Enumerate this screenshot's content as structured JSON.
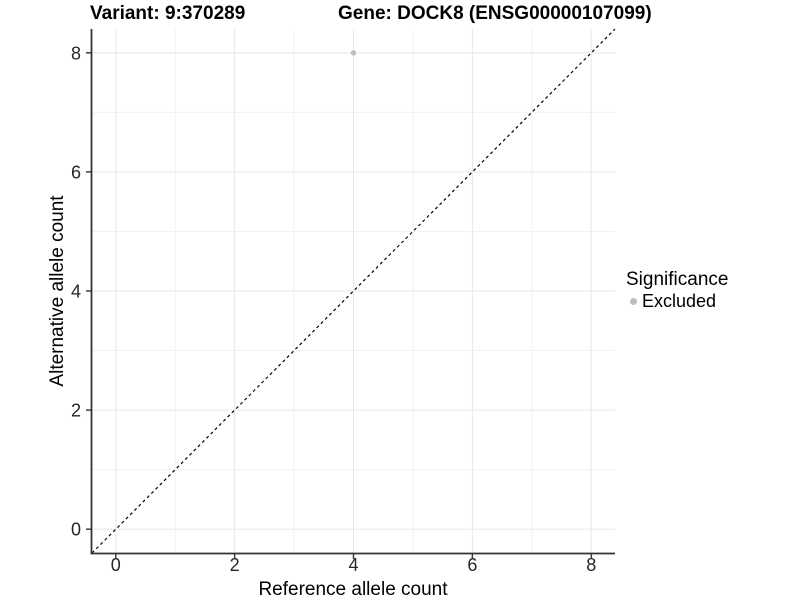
{
  "title": {
    "variant": "Variant: 9:370289",
    "gene": "Gene: DOCK8 (ENSG00000107099)"
  },
  "axes": {
    "x_label": "Reference allele count",
    "y_label": "Alternative allele count"
  },
  "legend": {
    "title": "Significance",
    "items": [
      {
        "label": "Excluded",
        "color": "#bdbdbd"
      }
    ]
  },
  "colors": {
    "point_excluded": "#bdbdbd",
    "grid_major": "#e7e7e7",
    "grid_minor": "#f2f2f2",
    "axis_line": "#333333",
    "tick_label": "#262626",
    "reference_line": "#000000"
  },
  "chart_data": {
    "type": "scatter",
    "title": "Variant: 9:370289   Gene: DOCK8 (ENSG00000107099)",
    "xlabel": "Reference allele count",
    "ylabel": "Alternative allele count",
    "xlim": [
      -0.4,
      8.4
    ],
    "ylim": [
      -0.4,
      8.4
    ],
    "x_ticks": [
      0,
      2,
      4,
      6,
      8
    ],
    "y_ticks": [
      0,
      2,
      4,
      6,
      8
    ],
    "x_minor_ticks": [
      1,
      3,
      5,
      7
    ],
    "y_minor_ticks": [
      1,
      3,
      5,
      7
    ],
    "grid": "major+minor",
    "legend_position": "right",
    "series": [
      {
        "name": "Excluded",
        "color": "#bdbdbd",
        "points": [
          {
            "x": 4,
            "y": 8
          }
        ]
      }
    ],
    "reference_line": {
      "slope": 1,
      "intercept": 0,
      "style": "dashed",
      "color": "#000000"
    }
  }
}
